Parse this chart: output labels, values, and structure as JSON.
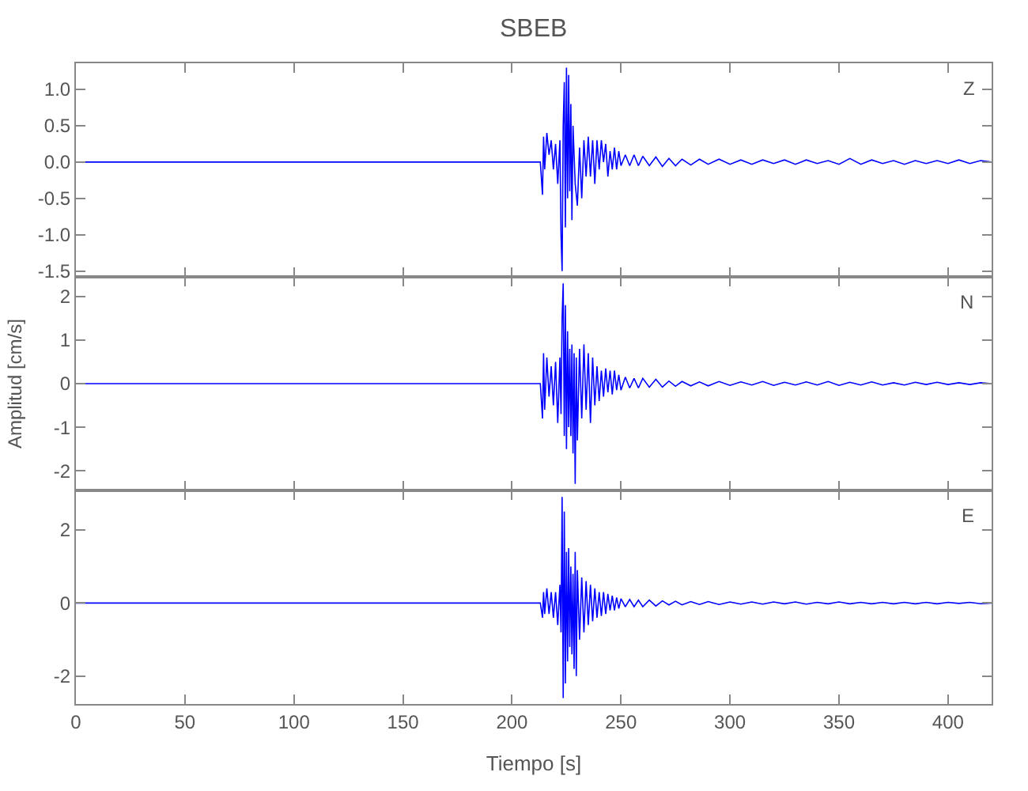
{
  "chart_data": [
    {
      "type": "line",
      "title": "SBEB",
      "xlim": [
        0,
        420
      ],
      "xticks": [
        0,
        50,
        100,
        150,
        200,
        250,
        300,
        350,
        400
      ],
      "tick_labels": "y",
      "marker": "none",
      "ylim": [
        -1.58,
        1.36
      ],
      "yticks": [
        {
          "value": -1.5,
          "label": "-1.5"
        },
        {
          "value": -1,
          "label": "-1.0"
        },
        {
          "value": -0.5,
          "label": "-0.5"
        },
        {
          "value": 0,
          "label": "0.0"
        },
        {
          "value": 0.5,
          "label": "0.5"
        },
        {
          "value": 1,
          "label": "1.0"
        }
      ],
      "x": [
        0,
        213,
        214,
        214.5,
        215,
        216,
        217,
        218,
        219,
        220,
        221,
        222,
        222.5,
        223,
        223.5,
        224,
        224.5,
        225,
        225.5,
        226,
        226.5,
        227,
        227.5,
        228,
        229,
        230,
        231,
        232,
        233,
        234,
        235,
        236,
        237,
        238,
        239,
        240,
        241,
        242,
        243,
        244,
        245,
        246,
        247,
        248,
        249,
        250,
        252,
        254,
        256,
        258,
        260,
        263,
        266,
        269,
        272,
        275,
        278,
        282,
        286,
        290,
        295,
        300,
        305,
        310,
        315,
        320,
        325,
        330,
        335,
        340,
        345,
        350,
        355,
        360,
        365,
        370,
        375,
        380,
        385,
        390,
        395,
        400,
        405,
        410,
        415,
        420
      ],
      "series": [
        {
          "name": "Z",
          "color": "#0000ff",
          "values": [
            0,
            0,
            -0.45,
            0.35,
            -0.1,
            0.4,
            0.1,
            0.3,
            -0.1,
            0.25,
            -0.3,
            0.3,
            -1.0,
            -1.5,
            0.5,
            1.1,
            -0.9,
            1.3,
            -0.5,
            1.2,
            -0.4,
            0.8,
            -0.8,
            0.5,
            -0.3,
            -0.6,
            0.2,
            -0.5,
            0.3,
            -0.2,
            0.35,
            -0.2,
            0.3,
            -0.3,
            0.3,
            -0.1,
            0.3,
            0.0,
            0.25,
            -0.2,
            0.15,
            -0.1,
            0.2,
            -0.1,
            0.15,
            -0.05,
            0.1,
            -0.05,
            0.1,
            -0.05,
            0.08,
            -0.05,
            0.07,
            -0.06,
            0.05,
            -0.05,
            0.04,
            -0.04,
            0.04,
            -0.03,
            0.04,
            -0.03,
            0.03,
            -0.03,
            0.03,
            -0.02,
            0.03,
            -0.03,
            0.03,
            -0.02,
            0.02,
            -0.03,
            0.05,
            -0.03,
            0.03,
            -0.02,
            0.02,
            -0.03,
            0.02,
            -0.02,
            0.02,
            -0.02,
            0.03,
            -0.02,
            0.02,
            0.0
          ]
        }
      ]
    },
    {
      "type": "line",
      "ylabel": "Amplitud [cm/s]",
      "xlim": [
        0,
        420
      ],
      "xticks": [
        0,
        50,
        100,
        150,
        200,
        250,
        300,
        350,
        400
      ],
      "tick_labels": "y",
      "marker": "none",
      "ylim": [
        -2.45,
        2.45
      ],
      "yticks": [
        -2,
        -1,
        0,
        1,
        2
      ],
      "x": [
        0,
        213,
        214,
        214.5,
        215,
        216,
        217,
        218,
        219,
        220,
        221,
        222,
        222.5,
        223,
        223.5,
        224,
        224.5,
        225,
        225.5,
        226,
        226.5,
        227,
        227.5,
        228,
        228.5,
        229,
        229.5,
        230,
        231,
        232,
        233,
        234,
        235,
        236,
        237,
        238,
        239,
        240,
        241,
        242,
        243,
        244,
        245,
        246,
        247,
        248,
        249,
        250,
        252,
        254,
        256,
        258,
        260,
        263,
        266,
        269,
        272,
        275,
        278,
        282,
        286,
        290,
        295,
        300,
        305,
        310,
        315,
        320,
        325,
        330,
        335,
        340,
        345,
        350,
        355,
        360,
        365,
        370,
        375,
        380,
        385,
        390,
        395,
        400,
        405,
        410,
        415,
        420
      ],
      "series": [
        {
          "name": "N",
          "color": "#0000ff",
          "values": [
            0,
            0,
            -0.8,
            0.7,
            -0.6,
            0.6,
            -0.3,
            0.4,
            -0.5,
            0.5,
            -0.9,
            0.6,
            -0.7,
            1.5,
            2.3,
            -1.2,
            1.8,
            -1.5,
            1.2,
            -1.0,
            0.8,
            -1.2,
            0.9,
            -1.6,
            0.7,
            -2.3,
            0.6,
            -1.3,
            0.8,
            -0.8,
            0.9,
            -0.6,
            0.7,
            -0.9,
            0.6,
            -0.5,
            0.4,
            -0.4,
            0.3,
            -0.3,
            0.35,
            -0.2,
            0.3,
            -0.25,
            0.3,
            -0.15,
            0.2,
            -0.15,
            0.15,
            -0.1,
            0.12,
            -0.1,
            0.12,
            -0.08,
            0.1,
            -0.08,
            0.06,
            -0.06,
            0.05,
            -0.05,
            0.04,
            -0.05,
            0.05,
            -0.04,
            0.04,
            -0.03,
            0.05,
            -0.04,
            0.03,
            -0.03,
            0.04,
            -0.03,
            0.05,
            -0.04,
            0.03,
            -0.03,
            0.04,
            -0.03,
            0.02,
            -0.03,
            0.03,
            -0.02,
            0.03,
            -0.02,
            0.02,
            -0.02,
            0.02,
            0.0
          ]
        }
      ]
    },
    {
      "type": "line",
      "xlabel": "Tiempo [s]",
      "xlim": [
        0,
        420
      ],
      "xticks": [
        0,
        50,
        100,
        150,
        200,
        250,
        300,
        350,
        400
      ],
      "marker": "none",
      "ylim": [
        -2.76,
        3.08
      ],
      "yticks": [
        -2,
        0,
        2
      ],
      "x": [
        0,
        213,
        214,
        214.5,
        215,
        216,
        217,
        218,
        219,
        220,
        221,
        222,
        222.5,
        223,
        223.5,
        224,
        224.5,
        225,
        225.5,
        226,
        226.5,
        227,
        227.5,
        228,
        228.5,
        229,
        229.5,
        230,
        231,
        232,
        233,
        234,
        235,
        236,
        237,
        238,
        239,
        240,
        241,
        242,
        243,
        244,
        245,
        246,
        247,
        248,
        249,
        250,
        252,
        254,
        256,
        258,
        260,
        263,
        266,
        269,
        272,
        275,
        278,
        282,
        286,
        290,
        295,
        300,
        305,
        310,
        315,
        320,
        325,
        330,
        335,
        340,
        345,
        350,
        355,
        360,
        365,
        370,
        375,
        380,
        385,
        390,
        395,
        400,
        405,
        410,
        415,
        420
      ],
      "series": [
        {
          "name": "E",
          "color": "#0000ff",
          "values": [
            0,
            0,
            -0.4,
            0.3,
            -0.3,
            0.4,
            -0.3,
            0.3,
            -0.4,
            0.3,
            -0.6,
            0.5,
            -0.8,
            2.9,
            -2.6,
            2.5,
            -2.2,
            1.4,
            -1.6,
            1.5,
            -1.2,
            1.0,
            -1.4,
            0.8,
            -1.8,
            1.4,
            -2.0,
            0.9,
            -1.0,
            0.7,
            -0.8,
            0.6,
            -0.6,
            0.5,
            -0.5,
            0.4,
            -0.4,
            0.3,
            -0.35,
            0.3,
            -0.3,
            0.25,
            -0.2,
            0.2,
            -0.2,
            0.15,
            -0.15,
            0.12,
            -0.1,
            0.1,
            -0.1,
            0.08,
            -0.1,
            0.08,
            -0.08,
            0.06,
            -0.05,
            0.05,
            -0.05,
            0.04,
            -0.04,
            0.04,
            -0.04,
            0.03,
            -0.03,
            0.03,
            -0.03,
            0.03,
            -0.02,
            0.03,
            -0.03,
            0.02,
            -0.02,
            0.03,
            -0.02,
            0.02,
            -0.02,
            0.02,
            -0.02,
            0.02,
            -0.02,
            0.02,
            -0.02,
            0.02,
            -0.01,
            0.02,
            -0.02,
            0.0
          ]
        }
      ]
    }
  ]
}
